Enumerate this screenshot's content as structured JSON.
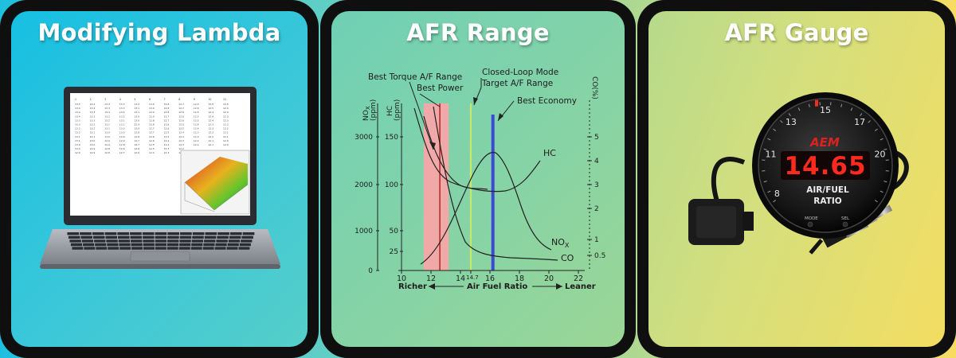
{
  "panels": [
    {
      "title": "Modifying Lambda"
    },
    {
      "title": "AFR Range"
    },
    {
      "title": "AFR Gauge"
    }
  ],
  "colors": {
    "panel_border": "#0f0f0f",
    "title_text": "#ffffff",
    "best_power_band": "#f7a6a8",
    "best_economy_line": "#3b49d6",
    "closed_loop_line": "#c8e86a"
  },
  "laptop": {
    "header_cols": [
      "1",
      "2",
      "3",
      "4",
      "5",
      "6",
      "7",
      "8",
      "9",
      "10",
      "11"
    ],
    "table_rows": [
      [
        "13.5",
        "13.4",
        "13.4",
        "13.3",
        "13.2",
        "13.0",
        "12.8",
        "12.7",
        "12.6",
        "12.5",
        "12.5"
      ],
      [
        "13.4",
        "13.4",
        "13.3",
        "13.3",
        "13.1",
        "13.0",
        "12.8",
        "12.7",
        "12.6",
        "12.5",
        "12.4"
      ],
      [
        "13.4",
        "13.3",
        "13.3",
        "13.2",
        "13.1",
        "12.9",
        "12.8",
        "12.6",
        "12.5",
        "12.4",
        "12.4"
      ],
      [
        "13.4",
        "13.3",
        "13.2",
        "13.2",
        "13.0",
        "12.9",
        "12.7",
        "12.6",
        "12.5",
        "12.4",
        "12.3"
      ],
      [
        "13.3",
        "13.3",
        "13.2",
        "13.1",
        "13.0",
        "12.8",
        "12.7",
        "12.6",
        "12.5",
        "12.4",
        "12.3"
      ],
      [
        "13.3",
        "13.2",
        "13.1",
        "13.1",
        "12.9",
        "12.8",
        "12.6",
        "12.5",
        "12.4",
        "12.3",
        "12.2"
      ],
      [
        "13.2",
        "13.2",
        "13.1",
        "13.0",
        "12.9",
        "12.7",
        "12.6",
        "12.5",
        "12.4",
        "12.3",
        "12.2"
      ],
      [
        "13.2",
        "13.1",
        "13.0",
        "13.0",
        "12.8",
        "12.7",
        "12.5",
        "12.4",
        "12.3",
        "12.2",
        "12.1"
      ],
      [
        "13.1",
        "13.1",
        "13.0",
        "12.9",
        "12.8",
        "12.6",
        "12.5",
        "12.4",
        "12.3",
        "12.2",
        "12.1"
      ],
      [
        "13.1",
        "13.0",
        "12.9",
        "12.9",
        "12.7",
        "12.6",
        "12.4",
        "12.3",
        "12.2",
        "12.1",
        "12.0"
      ],
      [
        "13.0",
        "13.0",
        "12.9",
        "12.8",
        "12.7",
        "12.5",
        "12.4",
        "12.3",
        "12.2",
        "12.1",
        "12.0"
      ],
      [
        "13.0",
        "12.9",
        "12.8",
        "12.8",
        "12.6",
        "12.5",
        "12.3",
        "12.2",
        "12.1",
        "12.0",
        "11.9"
      ],
      [
        "12.9",
        "12.9",
        "12.8",
        "12.7",
        "12.6",
        "12.4",
        "12.3",
        "12.2",
        "12.1",
        "12.0",
        "11.9"
      ]
    ]
  },
  "afr_chart": {
    "annotations": {
      "best_torque": "Best Torque A/F Range",
      "best_power": "Best Power",
      "closed_loop_1": "Closed-Loop Mode",
      "closed_loop_2": "Target A/F Range",
      "best_economy": "Best Economy",
      "hc_curve": "HC",
      "nox_curve": "NO",
      "nox_sub": "X",
      "co_curve": "CO"
    },
    "left_axis_nox": {
      "label_1": "NO",
      "label_sub": "X",
      "label_2": "(ppm)",
      "ticks": [
        "3000",
        "2000",
        "1000",
        "0"
      ]
    },
    "left_axis_hc": {
      "label_1": "HC",
      "label_2": "(ppm)",
      "ticks": [
        "150",
        "100",
        "50",
        "25"
      ]
    },
    "right_axis_co": {
      "label": "CO(%)",
      "ticks": [
        "5",
        "4",
        "3",
        "2",
        "1",
        "0.5"
      ]
    },
    "x_axis": {
      "ticks": [
        "10",
        "12",
        "14",
        "14.7",
        "16",
        "18",
        "20",
        "22"
      ],
      "richer": "Richer",
      "label": "Air Fuel Ratio",
      "leaner": "Leaner"
    },
    "markers": {
      "best_power_afr": [
        11.5,
        13.2
      ],
      "best_torque_afr": 12.6,
      "closed_loop_afr": 14.7,
      "best_economy_afr": 16.2
    }
  },
  "gauge": {
    "brand": "AEM",
    "reading": "14.65",
    "label_line1": "AIR/FUEL",
    "label_line2": "RATIO",
    "scale": [
      "8",
      "11",
      "13",
      "15",
      "17",
      "20"
    ],
    "mode_label": "MODE",
    "sel_label": "SEL"
  }
}
